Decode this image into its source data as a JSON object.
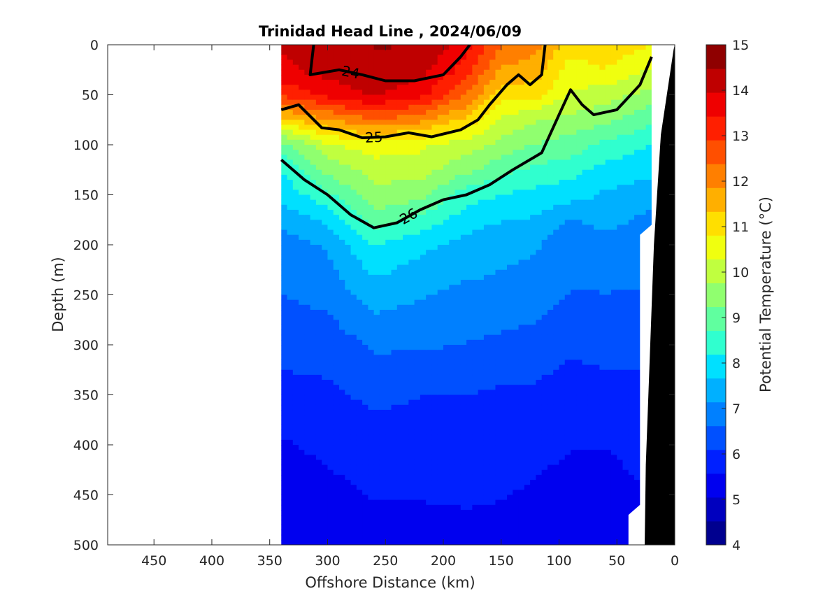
{
  "chart_data": {
    "type": "heatmap",
    "title": "Trinidad Head Line , 2024/06/09",
    "xlabel": "Offshore Distance (km)",
    "ylabel": "Depth (m)",
    "colorbar_label": "Potential Temperature (°C)",
    "xlim": [
      490,
      0
    ],
    "ylim": [
      500,
      0
    ],
    "x_reversed": true,
    "y_reversed": true,
    "xticks": [
      450,
      400,
      350,
      300,
      250,
      200,
      150,
      100,
      50,
      0
    ],
    "yticks": [
      0,
      50,
      100,
      150,
      200,
      250,
      300,
      350,
      400,
      450,
      500
    ],
    "clim": [
      4,
      15
    ],
    "cticks": [
      4,
      5,
      6,
      7,
      8,
      9,
      10,
      11,
      12,
      13,
      14,
      15
    ],
    "colormap": [
      "#00008f",
      "#0000bf",
      "#0000ef",
      "#0020ff",
      "#0050ff",
      "#0080ff",
      "#00b0ff",
      "#00e0ff",
      "#30ffcf",
      "#60ff9f",
      "#90ff6f",
      "#c0ff3f",
      "#f0ff0f",
      "#ffdf00",
      "#ffaf00",
      "#ff7f00",
      "#ff4f00",
      "#ff1f00",
      "#ef0000",
      "#bf0000",
      "#8f0000"
    ],
    "section_x_range": [
      340,
      20
    ],
    "temperature_profiles": {
      "depths": [
        0,
        25,
        50,
        75,
        100,
        125,
        150,
        175,
        200,
        250,
        300,
        350,
        400,
        450,
        500
      ],
      "stations": [
        {
          "x": 340,
          "t": [
            14.0,
            13.8,
            13.0,
            11.2,
            9.0,
            8.2,
            7.8,
            7.3,
            6.9,
            6.6,
            6.3,
            5.9,
            5.5,
            5.3,
            5.1
          ]
        },
        {
          "x": 300,
          "t": [
            14.4,
            14.2,
            13.6,
            11.8,
            10.2,
            9.4,
            8.6,
            7.8,
            7.2,
            6.8,
            6.3,
            6.0,
            5.7,
            5.4,
            5.2
          ]
        },
        {
          "x": 260,
          "t": [
            14.5,
            14.3,
            14.0,
            12.4,
            10.6,
            10.0,
            9.6,
            9.0,
            8.2,
            7.4,
            6.7,
            6.2,
            5.9,
            5.6,
            5.4
          ]
        },
        {
          "x": 220,
          "t": [
            14.5,
            14.2,
            13.6,
            12.0,
            10.4,
            10.0,
            9.4,
            8.6,
            7.8,
            7.2,
            6.7,
            6.1,
            5.9,
            5.6,
            5.4
          ]
        },
        {
          "x": 180,
          "t": [
            13.6,
            13.2,
            12.4,
            11.2,
            10.0,
            9.4,
            8.4,
            7.9,
            7.5,
            7.0,
            6.6,
            6.1,
            5.8,
            5.6,
            5.5
          ]
        },
        {
          "x": 150,
          "t": [
            12.4,
            11.8,
            11.0,
            10.2,
            9.6,
            8.9,
            8.2,
            7.7,
            7.3,
            7.0,
            6.5,
            6.0,
            5.8,
            5.6,
            5.4
          ]
        },
        {
          "x": 120,
          "t": [
            12.0,
            11.6,
            11.0,
            9.8,
            9.2,
            8.6,
            8.0,
            7.6,
            7.2,
            6.9,
            6.4,
            6.0,
            5.7,
            5.5,
            5.3
          ]
        },
        {
          "x": 90,
          "t": [
            11.0,
            10.6,
            10.2,
            9.6,
            9.0,
            8.4,
            7.9,
            7.1,
            6.8,
            6.6,
            6.2,
            5.8,
            5.6,
            5.4,
            5.2
          ]
        },
        {
          "x": 60,
          "t": [
            11.2,
            10.8,
            10.0,
            9.4,
            8.6,
            8.0,
            7.6,
            7.3,
            7.0,
            6.6,
            6.3,
            5.9,
            5.6,
            5.3,
            5.2
          ]
        },
        {
          "x": 20,
          "t": [
            10.8,
            10.2,
            9.6,
            8.8,
            8.2,
            7.8,
            7.4,
            7.0,
            6.8,
            6.6,
            6.2,
            6.0,
            5.8,
            5.6,
            5.5
          ]
        }
      ]
    },
    "sigma_theta_contours": [
      {
        "label": "24",
        "bold": true,
        "points": [
          [
            312,
            0
          ],
          [
            315,
            30
          ],
          [
            290,
            25
          ],
          [
            270,
            30
          ],
          [
            250,
            36
          ],
          [
            225,
            36
          ],
          [
            200,
            30
          ],
          [
            185,
            12
          ],
          [
            177,
            0
          ]
        ]
      },
      {
        "label": "25",
        "bold": true,
        "points": [
          [
            340,
            65
          ],
          [
            325,
            60
          ],
          [
            305,
            83
          ],
          [
            290,
            85
          ],
          [
            270,
            93
          ],
          [
            250,
            92
          ],
          [
            230,
            88
          ],
          [
            210,
            92
          ],
          [
            185,
            85
          ],
          [
            170,
            75
          ],
          [
            160,
            60
          ],
          [
            145,
            40
          ],
          [
            135,
            30
          ],
          [
            125,
            40
          ],
          [
            115,
            30
          ],
          [
            112,
            0
          ]
        ]
      },
      {
        "label": "26",
        "bold": true,
        "points": [
          [
            340,
            115
          ],
          [
            320,
            135
          ],
          [
            300,
            150
          ],
          [
            280,
            170
          ],
          [
            260,
            183
          ],
          [
            240,
            178
          ],
          [
            220,
            165
          ],
          [
            200,
            155
          ],
          [
            180,
            150
          ],
          [
            160,
            140
          ],
          [
            140,
            125
          ],
          [
            115,
            108
          ],
          [
            100,
            70
          ],
          [
            90,
            45
          ],
          [
            80,
            60
          ],
          [
            70,
            70
          ],
          [
            50,
            65
          ],
          [
            30,
            40
          ],
          [
            20,
            12
          ]
        ]
      }
    ],
    "colorbar_location": "right",
    "bathymetry_fill": "#000000"
  }
}
